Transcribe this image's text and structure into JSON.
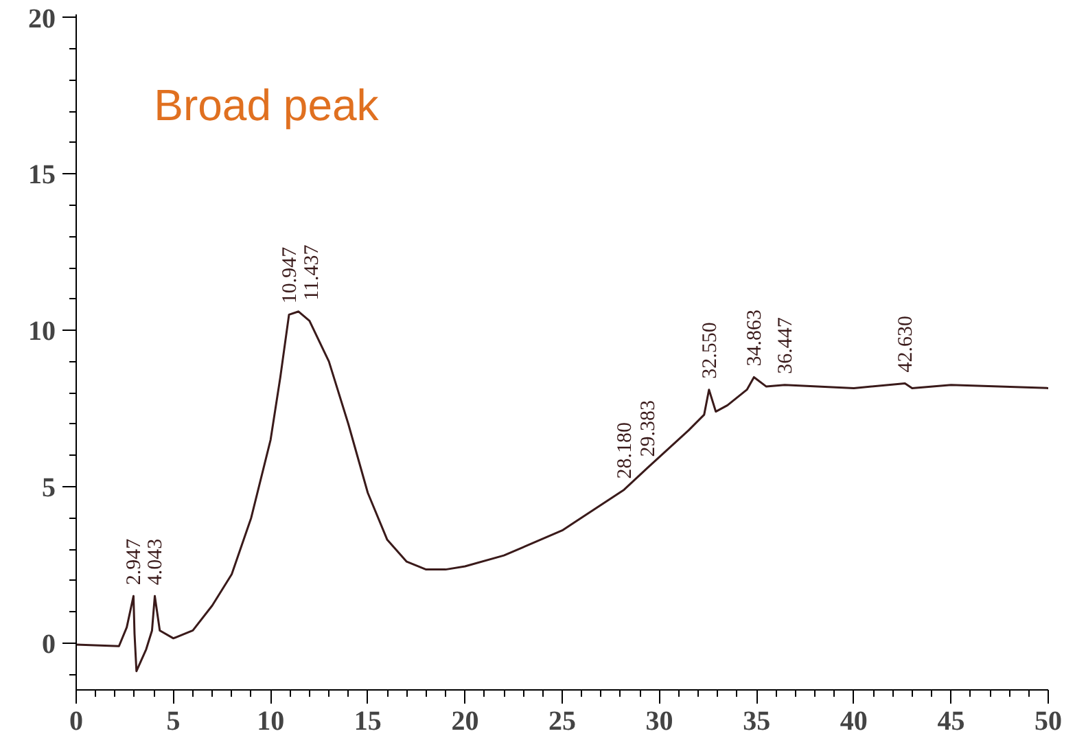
{
  "chart_data": {
    "type": "line",
    "x": [
      0,
      2.2,
      2.6,
      2.947,
      3.0,
      3.1,
      3.6,
      3.9,
      4.043,
      4.3,
      5,
      6,
      7,
      8,
      9,
      10,
      10.5,
      10.947,
      11.437,
      12,
      13,
      14,
      15,
      16,
      17,
      18,
      19,
      20,
      22,
      25,
      28.18,
      29.383,
      31.5,
      32.3,
      32.55,
      32.9,
      33.5,
      34.5,
      34.863,
      35.5,
      36.447,
      40,
      42.63,
      43,
      45,
      50
    ],
    "series": [
      {
        "color": "#3a1a1a",
        "values": [
          -0.05,
          -0.1,
          0.5,
          1.5,
          0.3,
          -0.9,
          -0.2,
          0.4,
          1.5,
          0.4,
          0.15,
          0.4,
          1.2,
          2.2,
          4.0,
          6.5,
          8.5,
          10.5,
          10.6,
          10.3,
          9.0,
          7.0,
          4.8,
          3.3,
          2.6,
          2.35,
          2.35,
          2.45,
          2.8,
          3.6,
          4.9,
          5.6,
          6.8,
          7.3,
          8.1,
          7.4,
          7.6,
          8.1,
          8.5,
          8.2,
          8.25,
          8.15,
          8.3,
          8.15,
          8.25,
          8.15
        ]
      }
    ],
    "xlim": [
      0,
      50
    ],
    "ylim": [
      -1.5,
      20.1
    ],
    "xticks": [
      0,
      5,
      10,
      15,
      20,
      25,
      30,
      35,
      40,
      45,
      50
    ],
    "yticks": [
      0,
      5,
      10,
      15,
      20
    ],
    "grid": false,
    "marker": "none",
    "line_style": "solid",
    "annotations": [
      "Broad peak",
      {
        "text": "2.947",
        "x": 2.947,
        "y": 1.5
      },
      {
        "text": "4.043",
        "x": 4.043,
        "y": 1.5
      },
      {
        "text": "10.947",
        "x": 10.947,
        "y": 10.5
      },
      {
        "text": "11.437",
        "x": 11.437,
        "y": 10.6
      },
      {
        "text": "28.180",
        "x": 28.18,
        "y": 4.9
      },
      {
        "text": "29.383",
        "x": 29.383,
        "y": 5.6
      },
      {
        "text": "32.550",
        "x": 32.55,
        "y": 8.1
      },
      {
        "text": "34.863",
        "x": 34.863,
        "y": 8.5
      },
      {
        "text": "36.447",
        "x": 36.447,
        "y": 8.25
      },
      {
        "text": "42.630",
        "x": 42.63,
        "y": 8.3
      }
    ]
  }
}
